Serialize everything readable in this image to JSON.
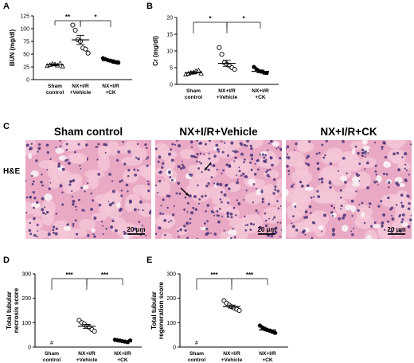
{
  "panels": {
    "A": "A",
    "B": "B",
    "C": "C",
    "D": "D",
    "E": "E"
  },
  "histology": {
    "row_label": "H&E",
    "tile_colors": {
      "base": "#e9a8c4",
      "cell": "#f4c7d8",
      "nucleus": "#4a3378",
      "lumen": "#f8f1f5"
    },
    "panels": [
      {
        "title": "Sham control",
        "scalebar": "20 μm",
        "arrows": 0
      },
      {
        "title": "NX+I/R+Vehicle",
        "scalebar": "20 μm",
        "arrows": 2
      },
      {
        "title": "NX+I/R+CK",
        "scalebar": "20 μm",
        "arrows": 0
      }
    ]
  },
  "chart_data": [
    {
      "id": "A",
      "type": "scatter",
      "ylabel": "BUN (mg/dl)",
      "ylim": [
        0,
        125
      ],
      "yticks": [
        0,
        25,
        50,
        75,
        100,
        125
      ],
      "categories": [
        "Sham\ncontrol",
        "NX+I/R\n+Vehicle",
        "NX+I/R\n+CK"
      ],
      "markers": [
        "triangle",
        "circle",
        "pentagon"
      ],
      "groups": [
        {
          "values": [
            27,
            29,
            31,
            30,
            28,
            32,
            26
          ],
          "mean": 29,
          "sem": 1.5
        },
        {
          "values": [
            107,
            97,
            78,
            75,
            62,
            60,
            52
          ],
          "mean": 78,
          "sem": 9
        },
        {
          "values": [
            42,
            40,
            38,
            37,
            35,
            34,
            33
          ],
          "mean": 37,
          "sem": 2
        }
      ],
      "significance": [
        {
          "from": 0,
          "to": 1,
          "label": "**"
        },
        {
          "from": 1,
          "to": 2,
          "label": "*"
        }
      ]
    },
    {
      "id": "B",
      "type": "scatter",
      "ylabel": "Cr (mg/dl)",
      "ylim": [
        0,
        20
      ],
      "yticks": [
        0,
        5,
        10,
        15,
        20
      ],
      "categories": [
        "Sham\ncontrol",
        "NX+I/R\n+Vehicle",
        "NX+I/R\n+CK"
      ],
      "markers": [
        "triangle",
        "circle",
        "pentagon"
      ],
      "groups": [
        {
          "values": [
            3.0,
            3.2,
            3.5,
            3.6,
            4.0,
            4.2,
            3.3
          ],
          "mean": 3.5,
          "sem": 0.3
        },
        {
          "values": [
            11,
            9,
            6.5,
            6.0,
            5.5,
            5.0,
            4.5
          ],
          "mean": 6.3,
          "sem": 0.9
        },
        {
          "values": [
            5.2,
            4.5,
            4.0,
            3.8,
            3.5,
            3.4
          ],
          "mean": 3.9,
          "sem": 0.4
        }
      ],
      "significance": [
        {
          "from": 0,
          "to": 1,
          "label": "*"
        },
        {
          "from": 1,
          "to": 2,
          "label": "*"
        }
      ]
    },
    {
      "id": "D",
      "type": "scatter",
      "ylabel": "Total tubular necrosis score",
      "ylim": [
        0,
        300
      ],
      "yticks": [
        0,
        100,
        200,
        300
      ],
      "categories": [
        "Sham\ncontrol",
        "NX+I/R\n+Vehicle",
        "NX+I/R\n+CK"
      ],
      "markers": [
        "triangle",
        "circle",
        "pentagon"
      ],
      "groups": [
        {
          "values": [
            0
          ],
          "mean": 0,
          "sem": 0,
          "note": "#"
        },
        {
          "values": [
            110,
            100,
            95,
            85,
            80,
            72,
            65
          ],
          "mean": 85,
          "sem": 8
        },
        {
          "values": [
            30,
            28,
            26,
            24,
            22,
            20,
            27
          ],
          "mean": 25,
          "sem": 2
        }
      ],
      "significance": [
        {
          "from": 0,
          "to": 1,
          "label": "***"
        },
        {
          "from": 1,
          "to": 2,
          "label": "***"
        }
      ]
    },
    {
      "id": "E",
      "type": "scatter",
      "ylabel": "Total tubular regeneration score",
      "ylim": [
        0,
        300
      ],
      "yticks": [
        0,
        100,
        200,
        300
      ],
      "categories": [
        "Sham\ncontrol",
        "NX+I/R\n+Vehicle",
        "NX+I/R\n+CK"
      ],
      "markers": [
        "triangle",
        "circle",
        "pentagon"
      ],
      "groups": [
        {
          "values": [
            0
          ],
          "mean": 0,
          "sem": 0,
          "note": "#"
        },
        {
          "values": [
            190,
            180,
            172,
            165,
            160,
            155,
            150
          ],
          "mean": 166,
          "sem": 6
        },
        {
          "values": [
            88,
            80,
            75,
            70,
            66,
            62,
            58
          ],
          "mean": 70,
          "sem": 4
        }
      ],
      "significance": [
        {
          "from": 0,
          "to": 1,
          "label": "***"
        },
        {
          "from": 1,
          "to": 2,
          "label": "***"
        }
      ]
    }
  ]
}
